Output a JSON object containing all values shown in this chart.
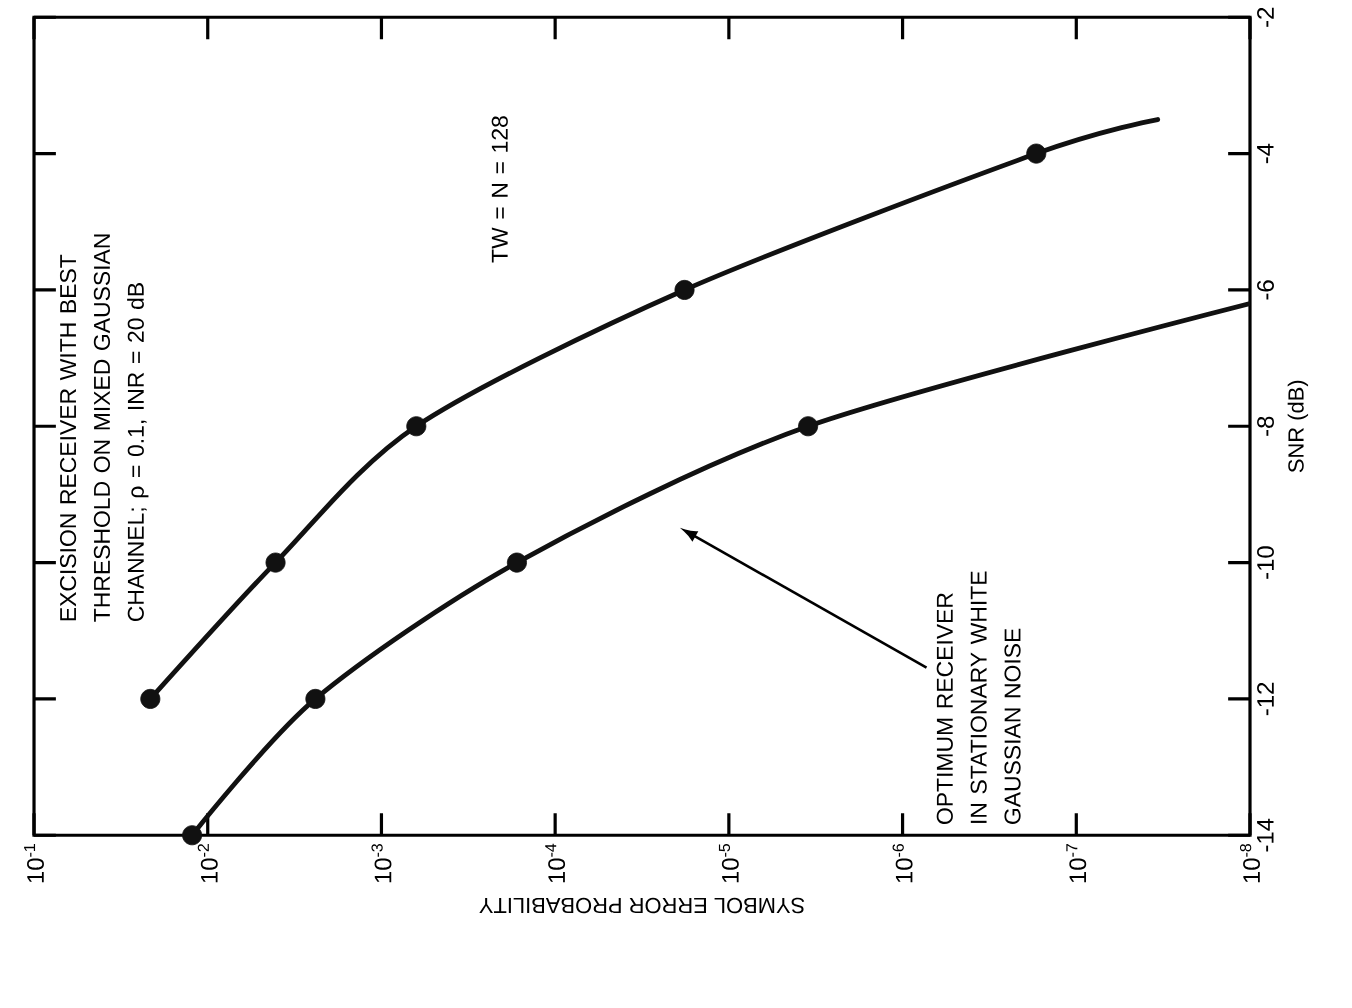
{
  "chart_data": {
    "type": "line",
    "xlabel": "SYMBOL ERROR PROBABILITY",
    "ylabel": "SNR (dB)",
    "log": "x",
    "xlim": [
      0.1,
      1e-08
    ],
    "ylim": [
      -14,
      -2
    ],
    "xticks": [
      {
        "value": 0.1,
        "label": "10$^{-1}$"
      },
      {
        "value": 0.01,
        "label": "10$^{-2}$"
      },
      {
        "value": 0.001,
        "label": "10$^{-3}$"
      },
      {
        "value": 0.0001,
        "label": "10$^{-4}$"
      },
      {
        "value": 1e-05,
        "label": "10$^{-5}$"
      },
      {
        "value": 1e-06,
        "label": "10$^{-6}$"
      },
      {
        "value": 1e-07,
        "label": "10$^{-7}$"
      },
      {
        "value": 1e-08,
        "label": "10$^{-8}$"
      }
    ],
    "yticks": [
      -14,
      -12,
      -10,
      -8,
      -6,
      -4,
      -2
    ],
    "annotations": [
      "EXCISION RECEIVER WITH BEST\nTHRESHOLD ON MIXED GAUSSIAN\nCHANNEL; ρ = 0.1, INR = 20 dB",
      "TW = N = 128",
      "OPTIMUM RECEIVER\nIN STATIONARY WHITE\nGAUSSIAN NOISE"
    ],
    "series": [
      {
        "color": "#111111",
        "marker": "none",
        "x": [
          0.0214,
          0.00407,
          0.00063,
          1.8e-05,
          1.7e-07,
          3.4e-08
        ],
        "values": [
          -12,
          -10,
          -8,
          -6,
          -4,
          -3.5
        ]
      },
      {
        "type": "scatter",
        "color": "#111111",
        "marker": "circle",
        "x": [
          0.0214,
          0.00407,
          0.00063,
          1.8e-05,
          1.7e-07
        ],
        "values": [
          -12,
          -10,
          -8,
          -6,
          -4
        ]
      },
      {
        "color": "#111111",
        "marker": "none",
        "x": [
          0.0123,
          0.0024,
          0.000166,
          3.5e-06,
          1e-08
        ],
        "values": [
          -14,
          -12,
          -10,
          -8,
          -6.2
        ]
      },
      {
        "type": "scatter",
        "color": "#111111",
        "marker": "circle",
        "x": [
          0.0123,
          0.0024,
          0.000166,
          3.5e-06
        ],
        "values": [
          -14,
          -12,
          -10,
          -8
        ]
      }
    ]
  }
}
